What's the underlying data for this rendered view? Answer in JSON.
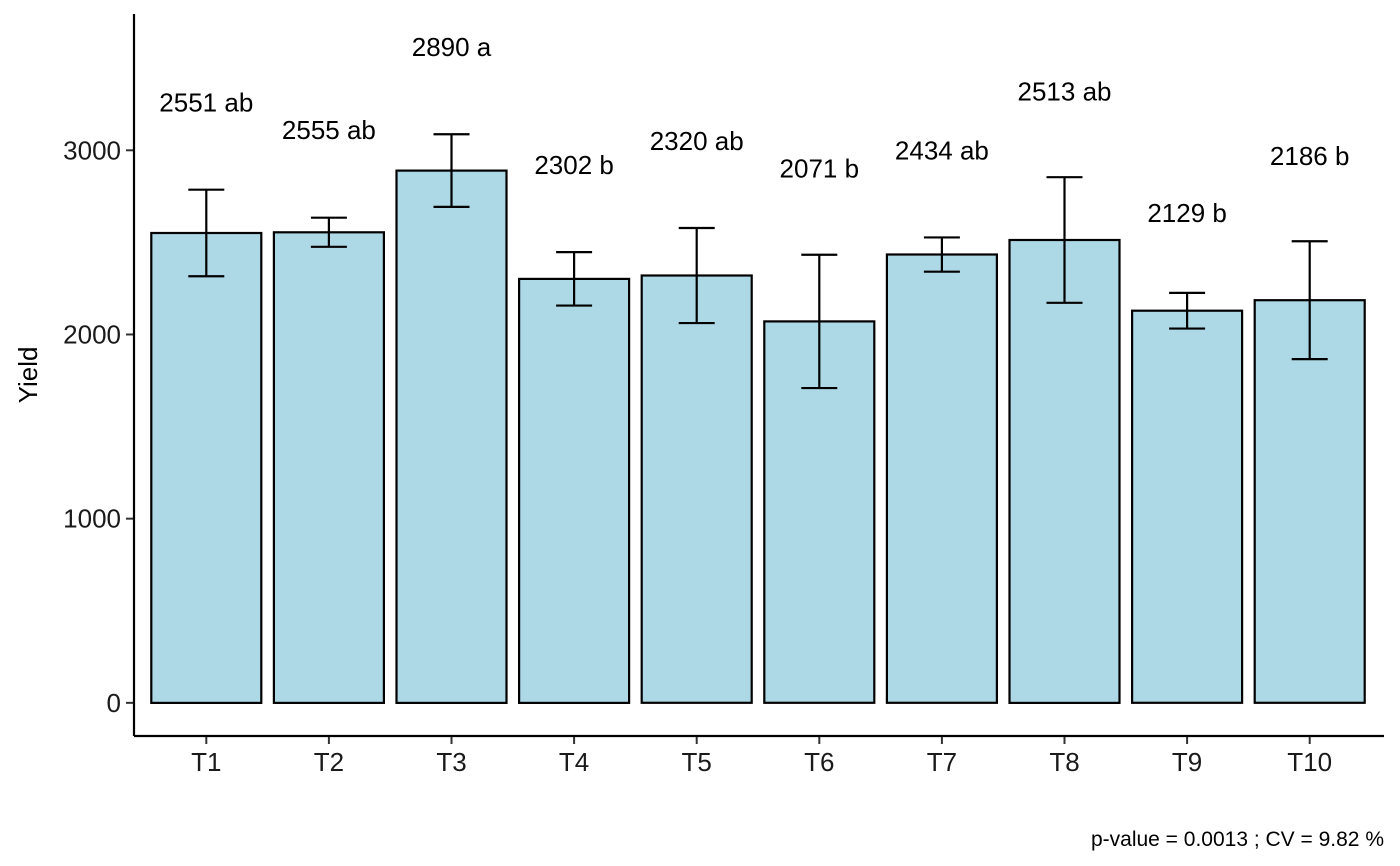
{
  "chart_data": {
    "type": "bar",
    "categories": [
      "T1",
      "T2",
      "T3",
      "T4",
      "T5",
      "T6",
      "T7",
      "T8",
      "T9",
      "T10"
    ],
    "values": [
      2551,
      2555,
      2890,
      2302,
      2320,
      2071,
      2434,
      2513,
      2129,
      2186
    ],
    "error_low": [
      2316,
      2476,
      2693,
      2157,
      2062,
      1709,
      2341,
      2172,
      2032,
      1866
    ],
    "error_high": [
      2786,
      2634,
      3087,
      2447,
      2578,
      2433,
      2527,
      2854,
      2226,
      2506
    ],
    "data_labels": [
      "2551 ab",
      "2555 ab",
      "2890 a",
      "2302 b",
      "2320 ab",
      "2071 b",
      "2434 ab",
      "2513 ab",
      "2129 b",
      "2186 b"
    ],
    "label_y": [
      3260,
      3110,
      3560,
      2920,
      3050,
      2900,
      3000,
      3320,
      2660,
      2970
    ],
    "title": "",
    "xlabel": "",
    "ylabel": "Yield",
    "ylim": [
      -180,
      3740
    ],
    "yticks": [
      0,
      1000,
      2000,
      3000
    ],
    "grid": false,
    "legend": "none",
    "bar_fill": "#add8e6",
    "bar_stroke": "#000000",
    "caption": "p-value = 0.0013 ; CV =  9.82 %"
  }
}
